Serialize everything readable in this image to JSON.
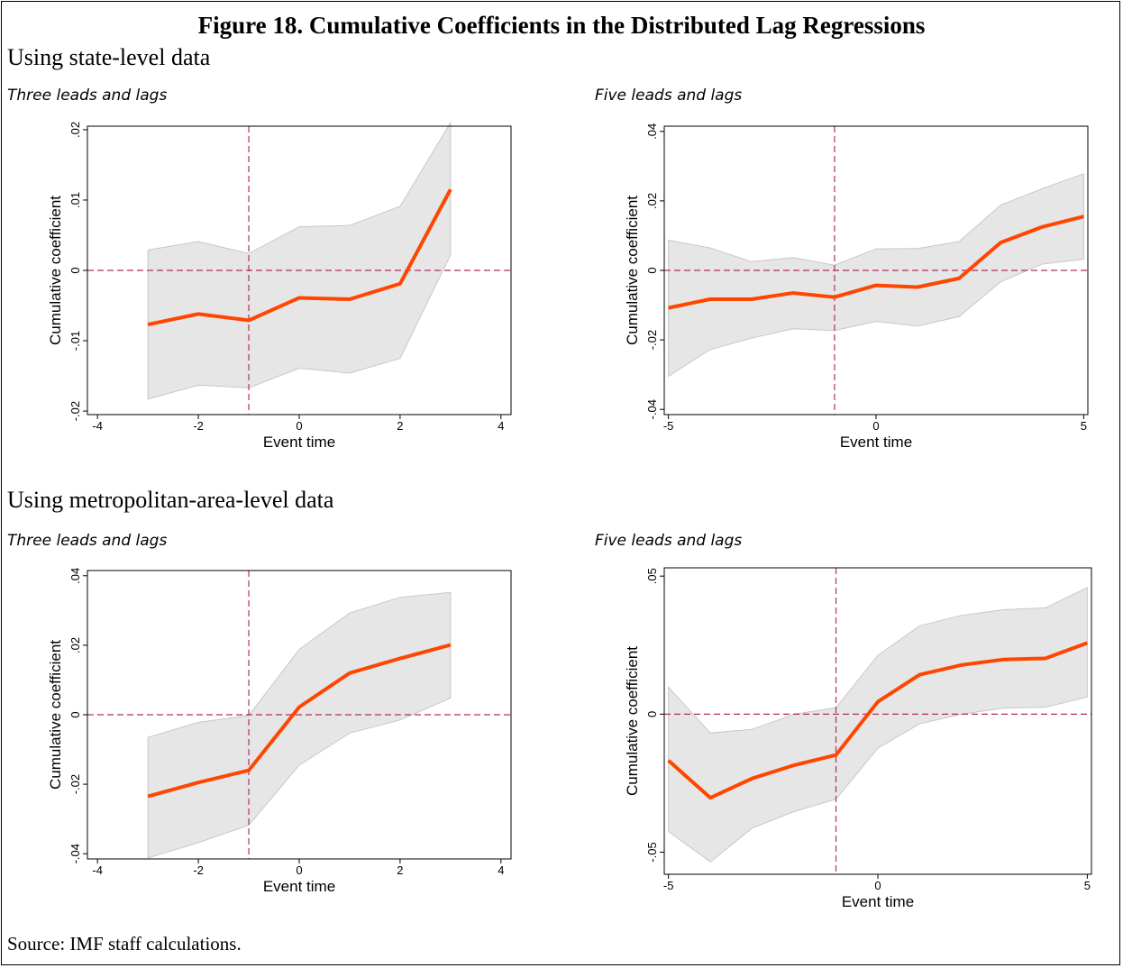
{
  "figure_title": "Figure 18. Cumulative Coefficients in the Distributed Lag Regressions",
  "sections": [
    {
      "title": "Using state-level data"
    },
    {
      "title": "Using metropolitan-area-level data"
    }
  ],
  "panels": [
    {
      "title": "Three leads and lags"
    },
    {
      "title": "Five leads and lags"
    },
    {
      "title": "Three leads and lags"
    },
    {
      "title": "Five leads and lags"
    }
  ],
  "source": "Source: IMF staff calculations.",
  "colors": {
    "line": "#FF4500",
    "band": "#E6E6E6",
    "band_edge": "#C8C8C8",
    "refline": "#B03060"
  },
  "chart_data": [
    {
      "type": "line",
      "xlabel": "Event time",
      "ylabel": "Cumulative coefficient",
      "xlim": [
        -4.2,
        4.2
      ],
      "ylim": [
        -0.0205,
        0.0205
      ],
      "xticks": [
        -4,
        -2,
        0,
        2,
        4
      ],
      "xtick_labels": [
        "-4",
        "-2",
        "0",
        "2",
        "4"
      ],
      "yticks": [
        -0.02,
        -0.01,
        0,
        0.01,
        0.02
      ],
      "ytick_labels": [
        "-.02",
        "-.01",
        "0",
        ".01",
        ".02"
      ],
      "vline": -1,
      "hline": 0,
      "x": [
        -3,
        -2,
        -1,
        0,
        1,
        2,
        3
      ],
      "y": [
        -0.0077,
        -0.0062,
        -0.0071,
        -0.0039,
        -0.0041,
        -0.0019,
        0.0115
      ],
      "upper": [
        0.0029,
        0.0041,
        0.0024,
        0.0062,
        0.0064,
        0.0091,
        0.021
      ],
      "lower": [
        -0.0183,
        -0.0163,
        -0.0167,
        -0.0139,
        -0.0146,
        -0.0125,
        0.0022
      ]
    },
    {
      "type": "line",
      "xlabel": "Event time",
      "ylabel": "Cumulative coefficient",
      "xlim": [
        -5.1,
        5.1
      ],
      "ylim": [
        -0.0415,
        0.0415
      ],
      "xticks": [
        -5,
        0,
        5
      ],
      "xtick_labels": [
        "-5",
        "0",
        "5"
      ],
      "yticks": [
        -0.04,
        -0.02,
        0,
        0.02,
        0.04
      ],
      "ytick_labels": [
        "-.04",
        "-.02",
        "0",
        ".02",
        ".04"
      ],
      "vline": -1,
      "hline": 0,
      "x": [
        -5,
        -4,
        -3,
        -2,
        -1,
        0,
        1,
        2,
        3,
        4,
        5
      ],
      "y": [
        -0.0108,
        -0.0083,
        -0.0083,
        -0.0065,
        -0.0077,
        -0.0043,
        -0.0048,
        -0.0023,
        0.008,
        0.0125,
        0.0155
      ],
      "upper": [
        0.0087,
        0.0065,
        0.0025,
        0.0037,
        0.0015,
        0.0062,
        0.0063,
        0.0083,
        0.0188,
        0.0235,
        0.0278
      ],
      "lower": [
        -0.0305,
        -0.0228,
        -0.0195,
        -0.0168,
        -0.0173,
        -0.0147,
        -0.016,
        -0.0133,
        -0.0033,
        0.0018,
        0.0032
      ]
    },
    {
      "type": "line",
      "xlabel": "Event time",
      "ylabel": "Cumulative coefficient",
      "xlim": [
        -4.2,
        4.2
      ],
      "ylim": [
        -0.0415,
        0.0415
      ],
      "xticks": [
        -4,
        -2,
        0,
        2,
        4
      ],
      "xtick_labels": [
        "-4",
        "-2",
        "0",
        "2",
        "4"
      ],
      "yticks": [
        -0.04,
        -0.02,
        0,
        0.02,
        0.04
      ],
      "ytick_labels": [
        "-.04",
        "-.02",
        "0",
        ".02",
        ".04"
      ],
      "vline": -1,
      "hline": 0,
      "x": [
        -3,
        -2,
        -1,
        0,
        1,
        2,
        3
      ],
      "y": [
        -0.0235,
        -0.0195,
        -0.016,
        0.0022,
        0.012,
        0.0162,
        0.0201
      ],
      "upper": [
        -0.0065,
        -0.0022,
        -0.0002,
        0.0188,
        0.0293,
        0.0338,
        0.0352
      ],
      "lower": [
        -0.0412,
        -0.0368,
        -0.0318,
        -0.0145,
        -0.0053,
        -0.0015,
        0.0048
      ]
    },
    {
      "type": "line",
      "xlabel": "Event time",
      "ylabel": "Cumulative coefficient",
      "xlim": [
        -5.1,
        5.1
      ],
      "ylim": [
        -0.058,
        0.053
      ],
      "xticks": [
        -5,
        0,
        5
      ],
      "xtick_labels": [
        "-5",
        "0",
        "5"
      ],
      "yticks": [
        -0.05,
        0,
        0.05
      ],
      "ytick_labels": [
        "-.05",
        "0",
        ".05"
      ],
      "vline": -1,
      "hline": 0,
      "x": [
        -5,
        -4,
        -3,
        -2,
        -1,
        0,
        1,
        2,
        3,
        4,
        5
      ],
      "y": [
        -0.0168,
        -0.0303,
        -0.0233,
        -0.0185,
        -0.0148,
        0.0045,
        0.0143,
        0.0178,
        0.0198,
        0.0202,
        0.0258
      ],
      "upper": [
        0.0098,
        -0.0068,
        -0.0055,
        0.0,
        0.0023,
        0.0213,
        0.032,
        0.0358,
        0.0378,
        0.0385,
        0.0458
      ],
      "lower": [
        -0.0425,
        -0.0535,
        -0.0413,
        -0.0353,
        -0.0308,
        -0.0123,
        -0.0035,
        0.0,
        0.0022,
        0.0025,
        0.0062
      ]
    }
  ]
}
